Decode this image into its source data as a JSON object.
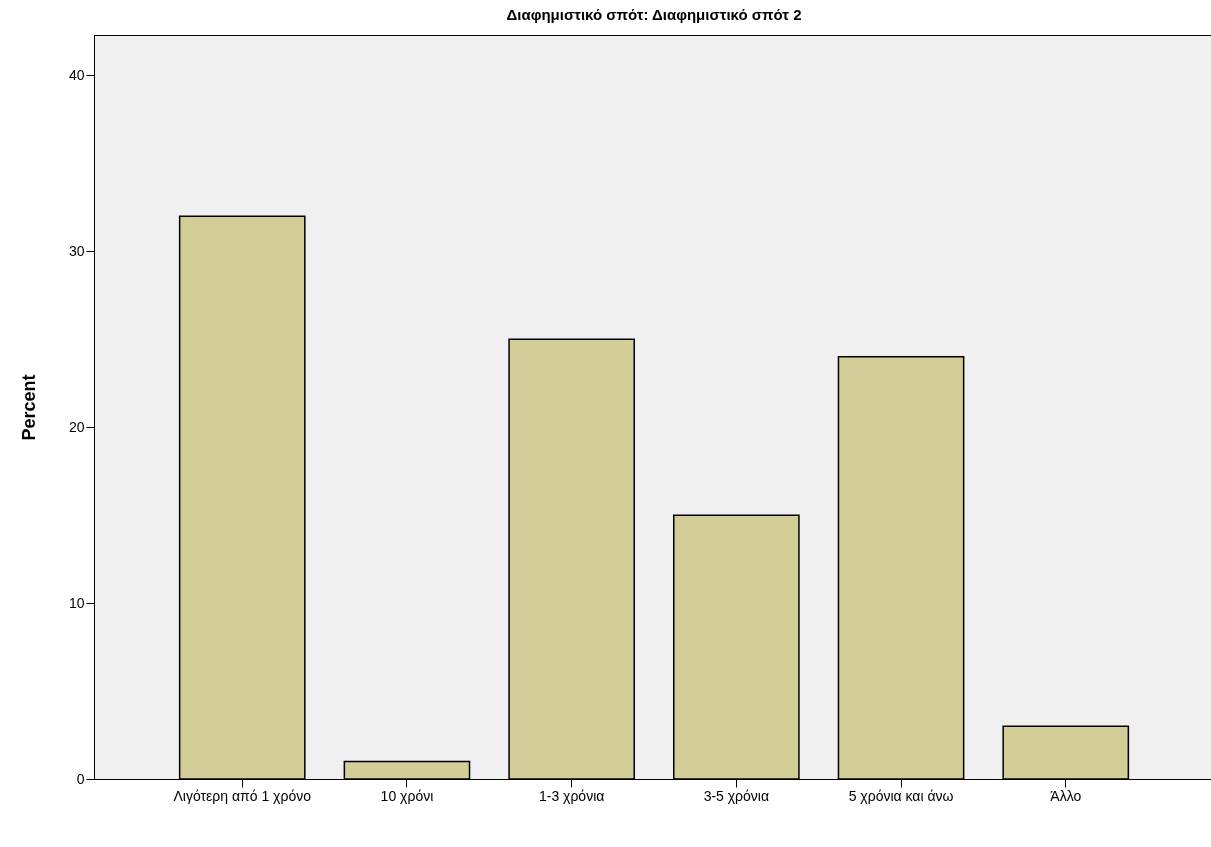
{
  "chart_data": {
    "type": "bar",
    "title": "Διαφημιστικό σπότ: Διαφημιστικό σπότ 2",
    "ylabel": "Percent",
    "categories": [
      "Λιγότερη από 1 χρόνο",
      "10 χρόνι",
      "1-3 χρόνια",
      "3-5 χρόνια",
      "5 χρόνια και άνω",
      "Άλλο"
    ],
    "values": [
      32,
      1,
      25,
      15,
      24,
      3
    ],
    "color": "#d3ce97",
    "ylim": [
      0,
      42.3
    ],
    "yticks": [
      0,
      10,
      20,
      30,
      40
    ],
    "grid": false
  }
}
